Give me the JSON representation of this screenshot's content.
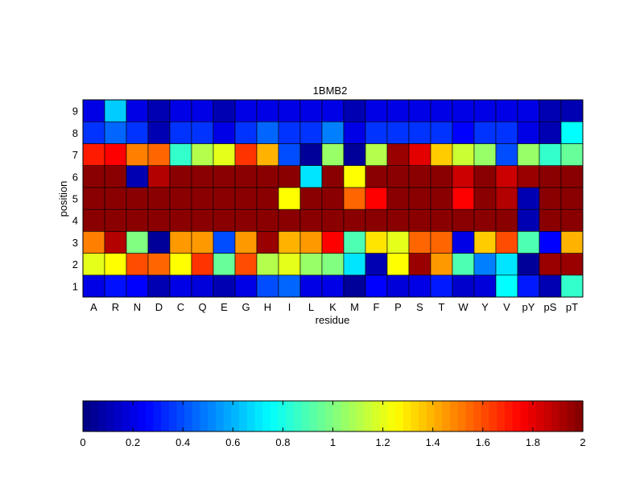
{
  "chart_data": {
    "type": "heatmap",
    "title": "1BMB2",
    "xlabel": "residue",
    "ylabel": "position",
    "x_categories": [
      "A",
      "R",
      "N",
      "D",
      "C",
      "Q",
      "E",
      "G",
      "H",
      "I",
      "L",
      "K",
      "M",
      "F",
      "P",
      "S",
      "T",
      "W",
      "Y",
      "V",
      "pY",
      "pS",
      "pT"
    ],
    "y_categories": [
      "1",
      "2",
      "3",
      "4",
      "5",
      "6",
      "7",
      "8",
      "9"
    ],
    "colorscale": "jet",
    "clim": [
      0,
      2
    ],
    "colorbar_ticks": [
      "0",
      "0.2",
      "0.4",
      "0.6",
      "0.8",
      "1",
      "1.2",
      "1.4",
      "1.6",
      "1.8",
      "2"
    ],
    "colorbar_placement": "bottom",
    "values": [
      [
        0.2,
        0.28,
        0.25,
        0.1,
        0.2,
        0.18,
        0.1,
        0.2,
        0.4,
        0.45,
        0.2,
        0.2,
        0.05,
        0.25,
        0.18,
        0.2,
        0.3,
        0.15,
        0.18,
        0.75,
        0.3,
        0.1,
        0.85
      ],
      [
        1.2,
        1.25,
        1.6,
        1.55,
        1.25,
        1.65,
        0.95,
        1.6,
        1.1,
        1.2,
        1.05,
        1.0,
        0.7,
        0.1,
        1.25,
        1.95,
        1.45,
        0.9,
        0.5,
        0.7,
        0.05,
        1.95,
        1.95
      ],
      [
        1.5,
        1.9,
        1.0,
        0.05,
        1.45,
        1.45,
        0.4,
        1.45,
        1.95,
        1.4,
        1.45,
        1.75,
        0.9,
        1.3,
        1.2,
        1.55,
        1.55,
        0.2,
        1.35,
        1.6,
        0.9,
        0.25,
        1.4
      ],
      [
        1.98,
        1.98,
        1.98,
        1.98,
        1.98,
        1.98,
        1.98,
        1.98,
        1.98,
        1.98,
        1.98,
        1.98,
        1.98,
        1.98,
        1.98,
        1.98,
        1.98,
        1.98,
        1.98,
        1.98,
        0.1,
        1.98,
        1.98
      ],
      [
        1.98,
        1.98,
        1.98,
        1.98,
        1.98,
        1.98,
        1.98,
        1.98,
        1.98,
        1.25,
        1.98,
        1.98,
        1.55,
        1.75,
        1.98,
        1.98,
        1.98,
        1.75,
        1.98,
        1.9,
        0.1,
        1.98,
        1.98
      ],
      [
        1.98,
        1.98,
        0.1,
        1.9,
        1.98,
        1.98,
        1.98,
        1.98,
        1.98,
        1.98,
        0.7,
        1.98,
        1.25,
        1.98,
        1.98,
        1.98,
        1.98,
        1.85,
        1.98,
        1.85,
        1.95,
        1.98,
        1.98
      ],
      [
        1.7,
        1.75,
        1.5,
        1.55,
        0.85,
        1.1,
        1.2,
        1.65,
        1.4,
        0.4,
        0.05,
        1.05,
        0.05,
        1.1,
        1.95,
        1.8,
        1.35,
        1.15,
        1.05,
        0.4,
        1.05,
        0.85,
        0.95
      ],
      [
        0.35,
        0.45,
        0.35,
        0.1,
        0.35,
        0.35,
        0.2,
        0.35,
        0.45,
        0.35,
        0.35,
        0.5,
        0.2,
        0.35,
        0.35,
        0.35,
        0.35,
        0.25,
        0.35,
        0.35,
        0.2,
        0.1,
        0.75
      ],
      [
        0.2,
        0.65,
        0.2,
        0.1,
        0.2,
        0.2,
        0.1,
        0.2,
        0.2,
        0.2,
        0.2,
        0.2,
        0.1,
        0.2,
        0.2,
        0.2,
        0.2,
        0.2,
        0.2,
        0.2,
        0.2,
        0.1,
        0.1
      ]
    ]
  }
}
